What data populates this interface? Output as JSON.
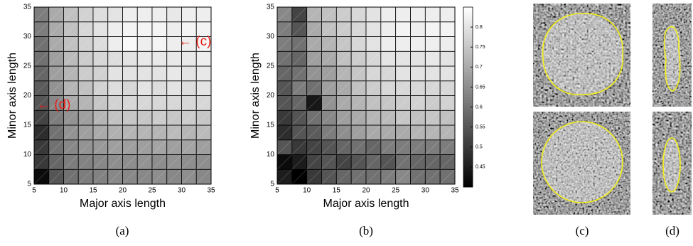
{
  "chart_data": [
    {
      "type": "heatmap",
      "xlabel": "Major axis length",
      "ylabel": "Minor axis length",
      "xlim": [
        5,
        35
      ],
      "ylim": [
        5,
        35
      ],
      "xticks": [
        5,
        10,
        15,
        20,
        25,
        30,
        35
      ],
      "yticks": [
        5,
        10,
        15,
        20,
        25,
        30,
        35
      ],
      "zlim": [
        0.4,
        0.85
      ],
      "z": [
        [
          0.42,
          0.55,
          0.6,
          0.62,
          0.63,
          0.64,
          0.64,
          0.64,
          0.65,
          0.64,
          0.65,
          0.64
        ],
        [
          0.5,
          0.58,
          0.62,
          0.63,
          0.64,
          0.65,
          0.65,
          0.66,
          0.65,
          0.66,
          0.65,
          0.65
        ],
        [
          0.5,
          0.6,
          0.64,
          0.66,
          0.67,
          0.68,
          0.68,
          0.68,
          0.69,
          0.68,
          0.69,
          0.68
        ],
        [
          0.48,
          0.6,
          0.66,
          0.68,
          0.7,
          0.71,
          0.72,
          0.72,
          0.72,
          0.73,
          0.72,
          0.73
        ],
        [
          0.52,
          0.62,
          0.66,
          0.68,
          0.72,
          0.74,
          0.75,
          0.75,
          0.76,
          0.75,
          0.76,
          0.75
        ],
        [
          0.55,
          0.64,
          0.7,
          0.72,
          0.75,
          0.77,
          0.78,
          0.78,
          0.78,
          0.78,
          0.78,
          0.78
        ],
        [
          0.56,
          0.66,
          0.72,
          0.74,
          0.77,
          0.79,
          0.78,
          0.8,
          0.79,
          0.8,
          0.79,
          0.8
        ],
        [
          0.58,
          0.68,
          0.72,
          0.76,
          0.77,
          0.8,
          0.8,
          0.8,
          0.8,
          0.81,
          0.8,
          0.81
        ],
        [
          0.6,
          0.68,
          0.73,
          0.76,
          0.78,
          0.79,
          0.8,
          0.81,
          0.81,
          0.81,
          0.81,
          0.82
        ],
        [
          0.6,
          0.7,
          0.74,
          0.77,
          0.79,
          0.82,
          0.84,
          0.82,
          0.83,
          0.82,
          0.82,
          0.83
        ],
        [
          0.62,
          0.7,
          0.74,
          0.78,
          0.8,
          0.82,
          0.83,
          0.83,
          0.83,
          0.82,
          0.83,
          0.83
        ],
        [
          0.62,
          0.7,
          0.74,
          0.77,
          0.79,
          0.8,
          0.82,
          0.82,
          0.82,
          0.81,
          0.82,
          0.82
        ]
      ],
      "annotations": [
        "← (c)",
        "← (d)"
      ],
      "annotation_color": "#e8201a"
    },
    {
      "type": "heatmap",
      "xlabel": "Major axis length",
      "ylabel": "Minor axis length",
      "xlim": [
        5,
        35
      ],
      "ylim": [
        5,
        35
      ],
      "xticks": [
        5,
        10,
        15,
        20,
        25,
        30,
        35
      ],
      "yticks": [
        5,
        10,
        15,
        20,
        25,
        30,
        35
      ],
      "zlim": [
        0.4,
        0.85
      ],
      "zticks": [
        0.45,
        0.5,
        0.55,
        0.6,
        0.65,
        0.7,
        0.75,
        0.8
      ],
      "colorbar": true,
      "z": [
        [
          0.45,
          0.4,
          0.5,
          0.55,
          0.58,
          0.6,
          0.6,
          0.62,
          0.64,
          0.6,
          0.6,
          0.6
        ],
        [
          0.42,
          0.45,
          0.52,
          0.55,
          0.52,
          0.55,
          0.58,
          0.55,
          0.6,
          0.58,
          0.58,
          0.58
        ],
        [
          0.55,
          0.5,
          0.52,
          0.55,
          0.58,
          0.6,
          0.58,
          0.62,
          0.62,
          0.62,
          0.62,
          0.62
        ],
        [
          0.48,
          0.55,
          0.56,
          0.62,
          0.65,
          0.68,
          0.7,
          0.7,
          0.7,
          0.72,
          0.72,
          0.72
        ],
        [
          0.5,
          0.55,
          0.6,
          0.64,
          0.68,
          0.7,
          0.72,
          0.73,
          0.75,
          0.74,
          0.75,
          0.74
        ],
        [
          0.55,
          0.58,
          0.44,
          0.66,
          0.7,
          0.72,
          0.74,
          0.75,
          0.76,
          0.77,
          0.76,
          0.77
        ],
        [
          0.55,
          0.62,
          0.6,
          0.68,
          0.7,
          0.74,
          0.76,
          0.78,
          0.78,
          0.78,
          0.78,
          0.78
        ],
        [
          0.58,
          0.6,
          0.66,
          0.68,
          0.72,
          0.75,
          0.78,
          0.78,
          0.8,
          0.8,
          0.8,
          0.8
        ],
        [
          0.6,
          0.58,
          0.68,
          0.7,
          0.74,
          0.76,
          0.78,
          0.8,
          0.8,
          0.8,
          0.81,
          0.8
        ],
        [
          0.62,
          0.6,
          0.7,
          0.72,
          0.75,
          0.78,
          0.8,
          0.82,
          0.82,
          0.82,
          0.82,
          0.82
        ],
        [
          0.62,
          0.55,
          0.7,
          0.74,
          0.76,
          0.78,
          0.8,
          0.82,
          0.83,
          0.82,
          0.83,
          0.83
        ],
        [
          0.64,
          0.52,
          0.72,
          0.74,
          0.76,
          0.78,
          0.8,
          0.82,
          0.82,
          0.82,
          0.82,
          0.82
        ]
      ]
    }
  ],
  "captions": [
    "(a)",
    "(b)",
    "(c)",
    "(d)"
  ]
}
